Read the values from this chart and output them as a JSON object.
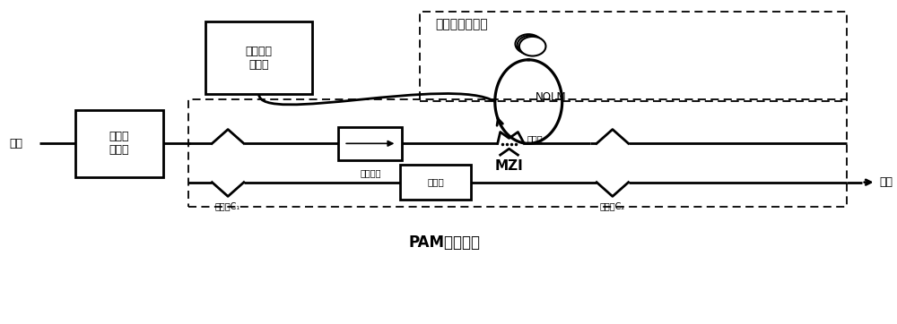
{
  "bg_color": "#ffffff",
  "labels": {
    "input": "输入",
    "output": "输出",
    "power_unit": "功率适\n配单元",
    "clock_unit": "光时钟控\n制单元",
    "isolator": "光隔离器",
    "phase_shifter": "移相器",
    "coupler1": "耦合器C₁",
    "coupler2": "耦合器C₂",
    "coupler_nolm": "耦合器",
    "nolm": "NOLM",
    "mzi": "MZI",
    "fiber_loop": "高非线性光纤环",
    "title": "PAM整形单元"
  }
}
